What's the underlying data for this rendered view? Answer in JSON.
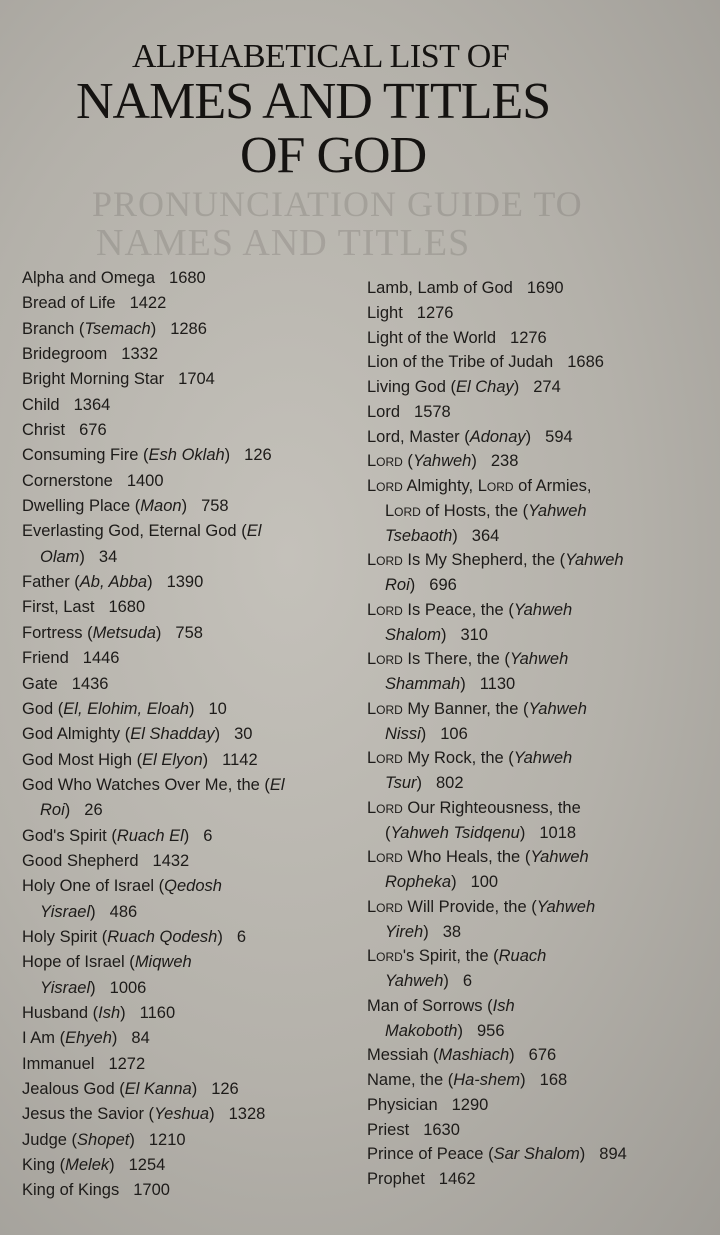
{
  "show_through": [
    "PRONUNCIATION GUIDE TO",
    "NAMES AND TITLES"
  ],
  "title": {
    "line1": "ALPHABETICAL LIST OF",
    "line2": "NAMES AND TITLES",
    "line3": "OF GOD"
  },
  "left_column": [
    {
      "lines": [
        [
          [
            "Alpha and Omega",
            ""
          ]
        ]
      ],
      "page": "1680"
    },
    {
      "lines": [
        [
          [
            "Bread of Life",
            ""
          ]
        ]
      ],
      "page": "1422"
    },
    {
      "lines": [
        [
          [
            "Branch (",
            ""
          ],
          [
            "Tsemach",
            "i"
          ],
          [
            ")",
            ""
          ]
        ]
      ],
      "page": "1286"
    },
    {
      "lines": [
        [
          [
            "Bridegroom",
            ""
          ]
        ]
      ],
      "page": "1332"
    },
    {
      "lines": [
        [
          [
            "Bright Morning Star",
            ""
          ]
        ]
      ],
      "page": "1704"
    },
    {
      "lines": [
        [
          [
            "Child",
            ""
          ]
        ]
      ],
      "page": "1364"
    },
    {
      "lines": [
        [
          [
            "Christ",
            ""
          ]
        ]
      ],
      "page": "676"
    },
    {
      "lines": [
        [
          [
            "Consuming Fire (",
            ""
          ],
          [
            "Esh Oklah",
            "i"
          ],
          [
            ")",
            ""
          ]
        ]
      ],
      "page": "126"
    },
    {
      "lines": [
        [
          [
            "Cornerstone",
            ""
          ]
        ]
      ],
      "page": "1400"
    },
    {
      "lines": [
        [
          [
            "Dwelling Place (",
            ""
          ],
          [
            "Maon",
            "i"
          ],
          [
            ")",
            ""
          ]
        ]
      ],
      "page": "758"
    },
    {
      "lines": [
        [
          [
            "Everlasting God, Eternal God (",
            ""
          ],
          [
            "El",
            "i"
          ]
        ],
        [
          [
            "Olam",
            "i"
          ],
          [
            ")",
            ""
          ]
        ]
      ],
      "page": "34"
    },
    {
      "lines": [
        [
          [
            "Father (",
            ""
          ],
          [
            "Ab, Abba",
            "i"
          ],
          [
            ")",
            ""
          ]
        ]
      ],
      "page": "1390"
    },
    {
      "lines": [
        [
          [
            "First, Last",
            ""
          ]
        ]
      ],
      "page": "1680"
    },
    {
      "lines": [
        [
          [
            "Fortress (",
            ""
          ],
          [
            "Metsuda",
            "i"
          ],
          [
            ")",
            ""
          ]
        ]
      ],
      "page": "758"
    },
    {
      "lines": [
        [
          [
            "Friend",
            ""
          ]
        ]
      ],
      "page": "1446"
    },
    {
      "lines": [
        [
          [
            "Gate",
            ""
          ]
        ]
      ],
      "page": "1436"
    },
    {
      "lines": [
        [
          [
            "God (",
            ""
          ],
          [
            "El, Elohim, Eloah",
            "i"
          ],
          [
            ")",
            ""
          ]
        ]
      ],
      "page": "10"
    },
    {
      "lines": [
        [
          [
            "God Almighty (",
            ""
          ],
          [
            "El Shadday",
            "i"
          ],
          [
            ")",
            ""
          ]
        ]
      ],
      "page": "30"
    },
    {
      "lines": [
        [
          [
            "God Most High (",
            ""
          ],
          [
            "El Elyon",
            "i"
          ],
          [
            ")",
            ""
          ]
        ]
      ],
      "page": "1142"
    },
    {
      "lines": [
        [
          [
            "God Who Watches Over Me, the (",
            ""
          ],
          [
            "El",
            "i"
          ]
        ],
        [
          [
            "Roi",
            "i"
          ],
          [
            ")",
            ""
          ]
        ]
      ],
      "page": "26"
    },
    {
      "lines": [
        [
          [
            "God's Spirit (",
            ""
          ],
          [
            "Ruach El",
            "i"
          ],
          [
            ")",
            ""
          ]
        ]
      ],
      "page": "6"
    },
    {
      "lines": [
        [
          [
            "Good Shepherd",
            ""
          ]
        ]
      ],
      "page": "1432"
    },
    {
      "lines": [
        [
          [
            "Holy One of Israel (",
            ""
          ],
          [
            "Qedosh",
            "i"
          ]
        ],
        [
          [
            "Yisrael",
            "i"
          ],
          [
            ")",
            ""
          ]
        ]
      ],
      "page": "486"
    },
    {
      "lines": [
        [
          [
            "Holy Spirit (",
            ""
          ],
          [
            "Ruach Qodesh",
            "i"
          ],
          [
            ")",
            ""
          ]
        ]
      ],
      "page": "6"
    },
    {
      "lines": [
        [
          [
            "Hope of Israel (",
            ""
          ],
          [
            "Miqweh",
            "i"
          ]
        ],
        [
          [
            "Yisrael",
            "i"
          ],
          [
            ")",
            ""
          ]
        ]
      ],
      "page": "1006"
    },
    {
      "lines": [
        [
          [
            "Husband (",
            ""
          ],
          [
            "Ish",
            "i"
          ],
          [
            ")",
            ""
          ]
        ]
      ],
      "page": "1160"
    },
    {
      "lines": [
        [
          [
            "I Am (",
            ""
          ],
          [
            "Ehyeh",
            "i"
          ],
          [
            ")",
            ""
          ]
        ]
      ],
      "page": "84"
    },
    {
      "lines": [
        [
          [
            "Immanuel",
            ""
          ]
        ]
      ],
      "page": "1272"
    },
    {
      "lines": [
        [
          [
            "Jealous God (",
            ""
          ],
          [
            "El Kanna",
            "i"
          ],
          [
            ")",
            ""
          ]
        ]
      ],
      "page": "126"
    },
    {
      "lines": [
        [
          [
            "Jesus the Savior (",
            ""
          ],
          [
            "Yeshua",
            "i"
          ],
          [
            ")",
            ""
          ]
        ]
      ],
      "page": "1328"
    },
    {
      "lines": [
        [
          [
            "Judge (",
            ""
          ],
          [
            "Shopet",
            "i"
          ],
          [
            ")",
            ""
          ]
        ]
      ],
      "page": "1210"
    },
    {
      "lines": [
        [
          [
            "King (",
            ""
          ],
          [
            "Melek",
            "i"
          ],
          [
            ")",
            ""
          ]
        ]
      ],
      "page": "1254"
    },
    {
      "lines": [
        [
          [
            "King of Kings",
            ""
          ]
        ]
      ],
      "page": "1700"
    }
  ],
  "right_column": [
    {
      "lines": [
        [
          [
            "Lamb, Lamb of God",
            ""
          ]
        ]
      ],
      "page": "1690"
    },
    {
      "lines": [
        [
          [
            "Light",
            ""
          ]
        ]
      ],
      "page": "1276"
    },
    {
      "lines": [
        [
          [
            "Light of the World",
            ""
          ]
        ]
      ],
      "page": "1276"
    },
    {
      "lines": [
        [
          [
            "Lion of the Tribe of Judah",
            ""
          ]
        ]
      ],
      "page": "1686"
    },
    {
      "lines": [
        [
          [
            "Living God (",
            ""
          ],
          [
            "El Chay",
            "i"
          ],
          [
            ")",
            ""
          ]
        ]
      ],
      "page": "274"
    },
    {
      "lines": [
        [
          [
            "Lord",
            ""
          ]
        ]
      ],
      "page": "1578"
    },
    {
      "lines": [
        [
          [
            "Lord, Master (",
            ""
          ],
          [
            "Adonay",
            "i"
          ],
          [
            ")",
            ""
          ]
        ]
      ],
      "page": "594"
    },
    {
      "lines": [
        [
          [
            "Lord",
            "sc"
          ],
          [
            " (",
            ""
          ],
          [
            "Yahweh",
            "i"
          ],
          [
            ")",
            ""
          ]
        ]
      ],
      "page": "238"
    },
    {
      "lines": [
        [
          [
            "Lord",
            "sc"
          ],
          [
            " Almighty, ",
            ""
          ],
          [
            "Lord",
            "sc"
          ],
          [
            " of Armies,",
            ""
          ]
        ],
        [
          [
            "Lord",
            "sc"
          ],
          [
            " of Hosts, the (",
            ""
          ],
          [
            "Yahweh",
            "i"
          ]
        ],
        [
          [
            "Tsebaoth",
            "i"
          ],
          [
            ")",
            ""
          ]
        ]
      ],
      "page": "364"
    },
    {
      "lines": [
        [
          [
            "Lord",
            "sc"
          ],
          [
            " Is My Shepherd, the (",
            ""
          ],
          [
            "Yahweh",
            "i"
          ]
        ],
        [
          [
            "Roi",
            "i"
          ],
          [
            ")",
            ""
          ]
        ]
      ],
      "page": "696"
    },
    {
      "lines": [
        [
          [
            "Lord",
            "sc"
          ],
          [
            " Is Peace, the (",
            ""
          ],
          [
            "Yahweh",
            "i"
          ]
        ],
        [
          [
            "Shalom",
            "i"
          ],
          [
            ")",
            ""
          ]
        ]
      ],
      "page": "310"
    },
    {
      "lines": [
        [
          [
            "Lord",
            "sc"
          ],
          [
            " Is There, the (",
            ""
          ],
          [
            "Yahweh",
            "i"
          ]
        ],
        [
          [
            "Shammah",
            "i"
          ],
          [
            ")",
            ""
          ]
        ]
      ],
      "page": "1130"
    },
    {
      "lines": [
        [
          [
            "Lord",
            "sc"
          ],
          [
            " My Banner, the (",
            ""
          ],
          [
            "Yahweh",
            "i"
          ]
        ],
        [
          [
            "Nissi",
            "i"
          ],
          [
            ")",
            ""
          ]
        ]
      ],
      "page": "106"
    },
    {
      "lines": [
        [
          [
            "Lord",
            "sc"
          ],
          [
            " My Rock, the (",
            ""
          ],
          [
            "Yahweh",
            "i"
          ]
        ],
        [
          [
            "Tsur",
            "i"
          ],
          [
            ")",
            ""
          ]
        ]
      ],
      "page": "802"
    },
    {
      "lines": [
        [
          [
            "Lord",
            "sc"
          ],
          [
            " Our Righteousness, the",
            ""
          ]
        ],
        [
          [
            "(",
            ""
          ],
          [
            "Yahweh Tsidqenu",
            "i"
          ],
          [
            ")",
            ""
          ]
        ]
      ],
      "page": "1018"
    },
    {
      "lines": [
        [
          [
            "Lord",
            "sc"
          ],
          [
            " Who Heals, the (",
            ""
          ],
          [
            "Yahweh",
            "i"
          ]
        ],
        [
          [
            "Ropheka",
            "i"
          ],
          [
            ")",
            ""
          ]
        ]
      ],
      "page": "100"
    },
    {
      "lines": [
        [
          [
            "Lord",
            "sc"
          ],
          [
            " Will Provide, the (",
            ""
          ],
          [
            "Yahweh",
            "i"
          ]
        ],
        [
          [
            "Yireh",
            "i"
          ],
          [
            ")",
            ""
          ]
        ]
      ],
      "page": "38"
    },
    {
      "lines": [
        [
          [
            "Lord",
            "sc"
          ],
          [
            "'s Spirit, the (",
            ""
          ],
          [
            "Ruach",
            "i"
          ]
        ],
        [
          [
            "Yahweh",
            "i"
          ],
          [
            ")",
            ""
          ]
        ]
      ],
      "page": "6"
    },
    {
      "lines": [
        [
          [
            "Man of Sorrows (",
            ""
          ],
          [
            "Ish",
            "i"
          ]
        ],
        [
          [
            "Makoboth",
            "i"
          ],
          [
            ")",
            ""
          ]
        ]
      ],
      "page": "956"
    },
    {
      "lines": [
        [
          [
            "Messiah (",
            ""
          ],
          [
            "Mashiach",
            "i"
          ],
          [
            ")",
            ""
          ]
        ]
      ],
      "page": "676"
    },
    {
      "lines": [
        [
          [
            "Name, the (",
            ""
          ],
          [
            "Ha-shem",
            "i"
          ],
          [
            ")",
            ""
          ]
        ]
      ],
      "page": "168"
    },
    {
      "lines": [
        [
          [
            "Physician",
            ""
          ]
        ]
      ],
      "page": "1290"
    },
    {
      "lines": [
        [
          [
            "Priest",
            ""
          ]
        ]
      ],
      "page": "1630"
    },
    {
      "lines": [
        [
          [
            "Prince of Peace (",
            ""
          ],
          [
            "Sar Shalom",
            "i"
          ],
          [
            ")",
            ""
          ]
        ]
      ],
      "page": "894"
    },
    {
      "lines": [
        [
          [
            "Prophet",
            ""
          ]
        ]
      ],
      "page": "1462"
    }
  ]
}
